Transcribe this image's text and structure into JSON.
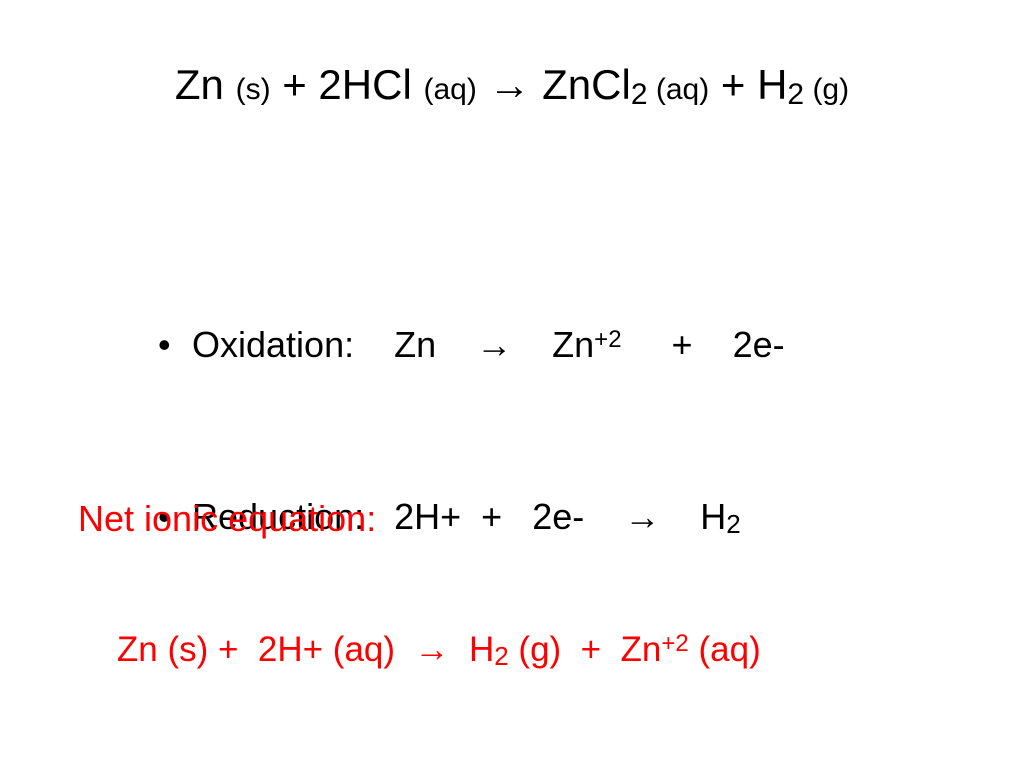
{
  "colors": {
    "text_black": "#000000",
    "text_red": "#ff0000",
    "background": "#ffffff"
  },
  "title": {
    "t1": "Zn ",
    "t2": "(s)",
    "t3": " + 2HCl ",
    "t4": "(aq)",
    "t5": " ",
    "arrow": "→",
    "t6": " ZnCl",
    "sub2a": "2",
    "t7": " (aq)",
    "t8": " + H",
    "sub2b": "2",
    "t9": "  (g)"
  },
  "oxidation": {
    "bullet": "•",
    "label": "Oxidation:    Zn    ",
    "arrow": "→",
    "mid": "    Zn",
    "sup": "+2",
    "tail": "     +    2e-"
  },
  "reduction": {
    "bullet": "•",
    "label": "Reduction:   2H+  +   2e-    ",
    "arrow": "→",
    "mid": "    H",
    "sub": "2"
  },
  "net_label": "Net ionic equation:",
  "net_eq": {
    "a": "Zn (s) +  2H+ (aq)  ",
    "arrow": "→",
    "b": "  H",
    "sub1": "2",
    "c": " (g)  +  Zn",
    "sup": "+2",
    "d": " (aq)"
  }
}
